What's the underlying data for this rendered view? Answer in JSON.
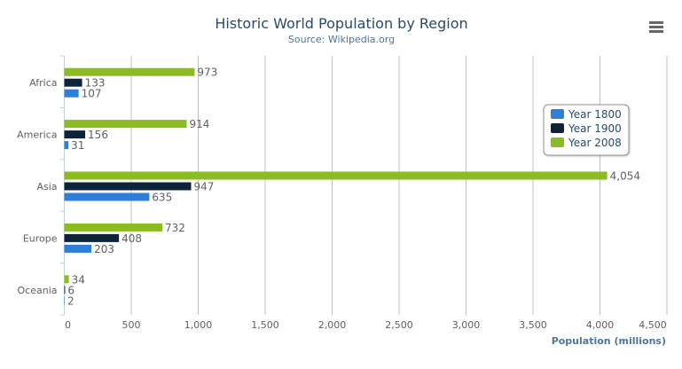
{
  "chart_data": {
    "type": "bar",
    "orientation": "horizontal",
    "title": "Historic World Population by Region",
    "subtitle": "Source: Wikipedia.org",
    "categories": [
      "Africa",
      "America",
      "Asia",
      "Europe",
      "Oceania"
    ],
    "series": [
      {
        "name": "Year 1800",
        "color": "#2f7ed8",
        "values": [
          107,
          31,
          635,
          203,
          2
        ]
      },
      {
        "name": "Year 1900",
        "color": "#0d233a",
        "values": [
          133,
          156,
          947,
          408,
          6
        ]
      },
      {
        "name": "Year 2008",
        "color": "#8bbc21",
        "values": [
          973,
          914,
          4054,
          732,
          34
        ]
      }
    ],
    "xlabel": "",
    "ylabel": "Population (millions)",
    "ylim": [
      0,
      4500
    ],
    "ticks": [
      0,
      500,
      1000,
      1500,
      2000,
      2500,
      3000,
      3500,
      4000,
      4500
    ],
    "tick_labels": [
      "0",
      "500",
      "1,000",
      "1,500",
      "2,000",
      "2,500",
      "3,000",
      "3,500",
      "4,000",
      "4,500"
    ],
    "data_labels": true,
    "grid": true,
    "legend_placement": "right"
  },
  "menu": {
    "icon": "menu-icon"
  },
  "colors": {
    "title": "#274b6d",
    "subtitle": "#4d759e",
    "axis_title": "#4d759e",
    "grid": "#c0c0c0",
    "label": "#606060"
  }
}
